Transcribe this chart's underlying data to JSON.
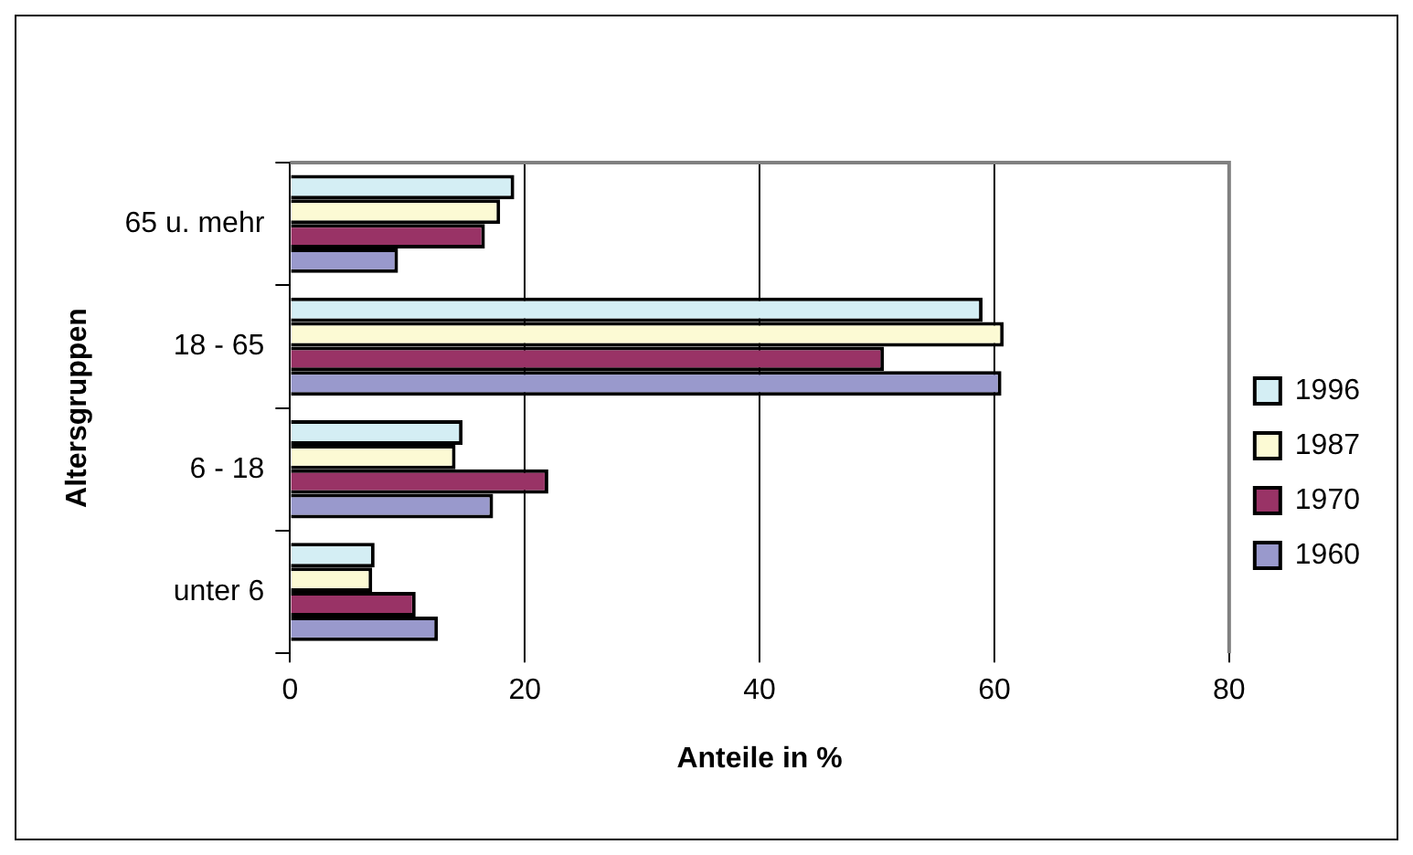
{
  "chart_data": {
    "type": "bar",
    "orientation": "horizontal",
    "xlabel": "Anteile in %",
    "ylabel": "Altersgruppen",
    "categories": [
      "65 u. mehr",
      "18 - 65",
      "6 - 18",
      "unter 6"
    ],
    "series": [
      {
        "name": "1996",
        "color": "#d4eef4",
        "values": [
          19.1,
          59.0,
          14.7,
          7.2
        ]
      },
      {
        "name": "1987",
        "color": "#fcfad4",
        "values": [
          17.9,
          60.8,
          14.1,
          7.0
        ]
      },
      {
        "name": "1970",
        "color": "#993366",
        "values": [
          16.6,
          50.6,
          22.0,
          10.7
        ]
      },
      {
        "name": "1960",
        "color": "#9999cc",
        "values": [
          9.2,
          60.6,
          17.3,
          12.6
        ]
      }
    ],
    "xlim": [
      0,
      80
    ],
    "xticks": [
      0,
      20,
      40,
      60,
      80
    ],
    "grid": "x",
    "legend": "right"
  }
}
